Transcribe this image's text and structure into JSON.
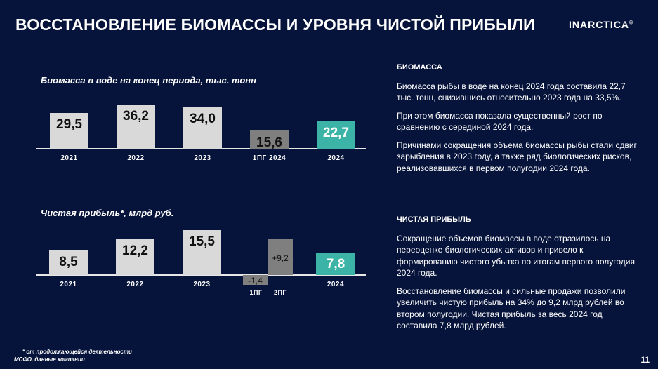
{
  "header": {
    "title": "ВОССТАНОВЛЕНИЕ БИОМАССЫ И УРОВНЯ ЧИСТОЙ ПРИБЫЛИ",
    "logo": "INARCTICA",
    "logo_mark": "®"
  },
  "colors": {
    "background": "#06133a",
    "light_bar": "#d9d9d9",
    "gray_bar": "#7f7f7f",
    "accent": "#3bb3a6"
  },
  "chart_data": [
    {
      "type": "bar",
      "title": "Биомасса в воде на конец периода, тыс. тонн",
      "categories": [
        "2021",
        "2022",
        "2023",
        "1ПГ 2024",
        "2024"
      ],
      "values": [
        29.5,
        36.2,
        34.0,
        15.6,
        22.7
      ],
      "labels": [
        "29,5",
        "36,2",
        "34,0",
        "15,6",
        "22,7"
      ],
      "colors": [
        "#d9d9d9",
        "#d9d9d9",
        "#d9d9d9",
        "#7f7f7f",
        "#3bb3a6"
      ]
    },
    {
      "type": "bar",
      "title": "Чистая прибыль*, млрд руб.",
      "categories": [
        "2021",
        "2022",
        "2023",
        "1ПГ",
        "2ПГ",
        "2024"
      ],
      "values": [
        8.5,
        12.2,
        15.5,
        -1.4,
        9.2,
        7.8
      ],
      "labels": [
        "8,5",
        "12,2",
        "15,5",
        "-1,4",
        "+9,2",
        "7,8"
      ],
      "colors": [
        "#d9d9d9",
        "#d9d9d9",
        "#d9d9d9",
        "#7f7f7f",
        "#7f7f7f",
        "#3bb3a6"
      ]
    }
  ],
  "right": {
    "biomass": {
      "heading": "БИОМАССА",
      "paragraphs": [
        "Биомасса рыбы в воде на конец 2024 года составила 22,7 тыс. тонн, снизившись относительно 2023 года на 33,5%.",
        "При этом биомасса показала существенный рост по сравнению с серединой 2024 года.",
        "Причинами сокращения объема биомассы рыбы стали сдвиг зарыбления в 2023 году, а также ряд биологических рисков, реализовавшихся в первом полугодии 2024 года."
      ]
    },
    "profit": {
      "heading": "ЧИСТАЯ ПРИБЫЛЬ",
      "paragraphs": [
        "Сокращение объемов биомассы в воде отразилось на переоценке биологических активов и привело к формированию чистого убытка по итогам первого полугодия 2024 года.",
        "Восстановление биомассы и сильные продажи позволили увеличить чистую прибыль на 34% до 9,2 млрд рублей во втором полугодии. Чистая прибыль за весь 2024 год составила 7,8 млрд рублей."
      ]
    }
  },
  "footer": {
    "note": "* от продолжающейся деятельности",
    "source": "МСФО, данные компании",
    "page": "11"
  }
}
